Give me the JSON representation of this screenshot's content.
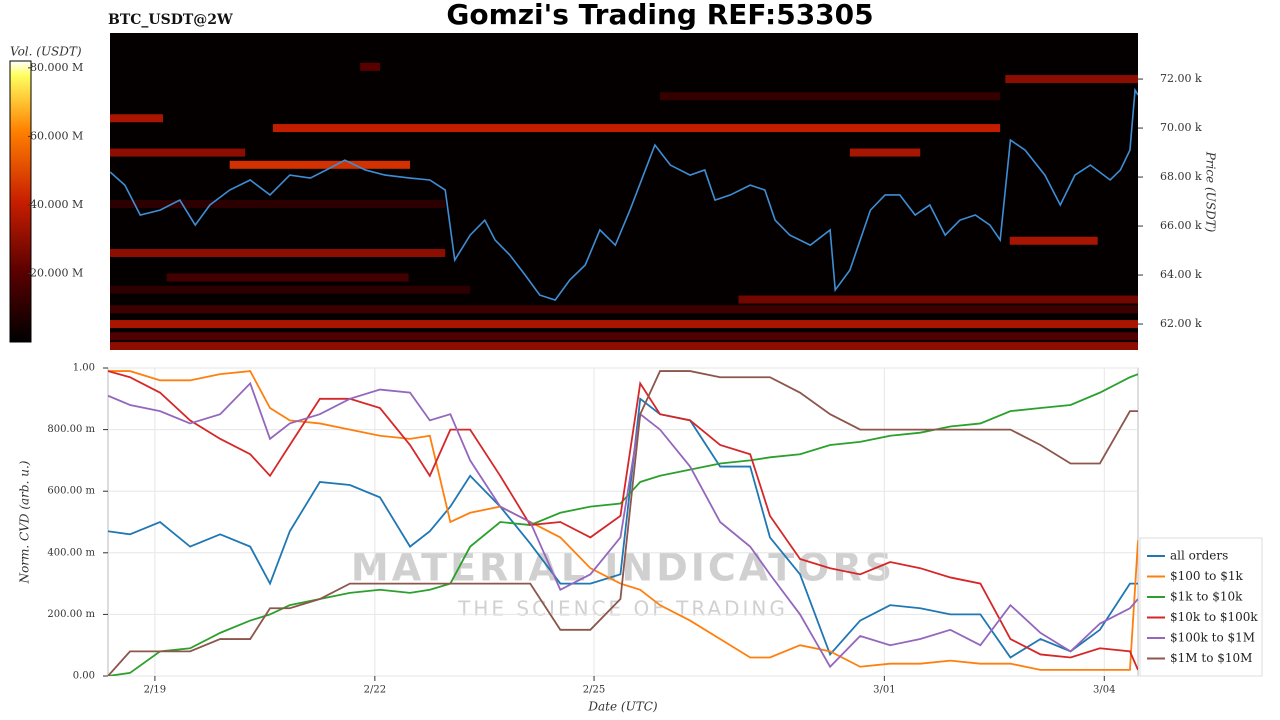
{
  "title": "Gomzi's Trading REF:53305",
  "watermark": {
    "brand": "MATERIAL INDICATORS",
    "tagline": "THE SCIENCE OF TRADING"
  },
  "chart_data": [
    {
      "type": "heatmap",
      "label": "BTC_USDT@2W",
      "ylabel": "Price (USDT)",
      "xlim": [
        0,
        14.05
      ],
      "ylim": [
        60940,
        73880
      ],
      "yticks": [
        {
          "value": 62000,
          "label": "62.00 k"
        },
        {
          "value": 64000,
          "label": "64.00 k"
        },
        {
          "value": 66000,
          "label": "66.00 k"
        },
        {
          "value": 68000,
          "label": "68.00 k"
        },
        {
          "value": 70000,
          "label": "70.00 k"
        },
        {
          "value": 72000,
          "label": "72.00 k"
        }
      ],
      "x": [
        0.03,
        0.23,
        0.44,
        0.71,
        0.98,
        1.19,
        1.39,
        1.66,
        1.94,
        2.21,
        2.48,
        2.76,
        3.03,
        3.23,
        3.51,
        3.78,
        4.12,
        4.39,
        4.6,
        4.73,
        4.94,
        5.14,
        5.28,
        5.48,
        5.69,
        5.89,
        6.1,
        6.3,
        6.51,
        6.71,
        6.92,
        7.12,
        7.33,
        7.46,
        7.67,
        7.94,
        8.14,
        8.28,
        8.49,
        8.76,
        8.96,
        9.1,
        9.3,
        9.58,
        9.85,
        9.92,
        10.12,
        10.4,
        10.6,
        10.8,
        11.01,
        11.21,
        11.42,
        11.62,
        11.83,
        12.03,
        12.17,
        12.31,
        12.51,
        12.78,
        12.99,
        13.19,
        13.4,
        13.67,
        13.81,
        13.94,
        14.01,
        14.05
      ],
      "series": [
        {
          "color": "#3d8ed6",
          "values": [
            68200,
            67670,
            66450,
            66650,
            67060,
            66040,
            66860,
            67470,
            67880,
            67270,
            68080,
            67960,
            68370,
            68690,
            68290,
            68080,
            67960,
            67880,
            67470,
            64610,
            65630,
            66240,
            65430,
            64820,
            64000,
            63180,
            62980,
            63800,
            64410,
            65840,
            65220,
            66650,
            68290,
            69310,
            68490,
            68080,
            68290,
            67060,
            67270,
            67670,
            67470,
            66240,
            65630,
            65220,
            65840,
            63390,
            64200,
            66650,
            67270,
            67270,
            66450,
            66860,
            65630,
            66240,
            66450,
            66040,
            65430,
            69510,
            69100,
            68080,
            66860,
            68080,
            68490,
            67880,
            68290,
            69100,
            71550,
            71350
          ]
        }
      ],
      "bands": [
        {
          "price": 61100,
          "x0": 0,
          "x1": 14.05,
          "volume": 30000000
        },
        {
          "price": 61500,
          "x0": 0,
          "x1": 14.05,
          "volume": 18000000
        },
        {
          "price": 62000,
          "x0": 0,
          "x1": 14.05,
          "volume": 35000000
        },
        {
          "price": 62600,
          "x0": 0,
          "x1": 14.05,
          "volume": 14000000
        },
        {
          "price": 63000,
          "x0": 8.6,
          "x1": 14.05,
          "volume": 25000000
        },
        {
          "price": 63400,
          "x0": 0,
          "x1": 4.94,
          "volume": 10000000
        },
        {
          "price": 63900,
          "x0": 0.8,
          "x1": 4.1,
          "volume": 15000000
        },
        {
          "price": 64900,
          "x0": 0,
          "x1": 4.6,
          "volume": 30000000
        },
        {
          "price": 65400,
          "x0": 12.3,
          "x1": 13.5,
          "volume": 35000000
        },
        {
          "price": 66900,
          "x0": 0,
          "x1": 4.6,
          "volume": 10000000
        },
        {
          "price": 68500,
          "x0": 1.66,
          "x1": 4.12,
          "volume": 45000000
        },
        {
          "price": 69000,
          "x0": 0,
          "x1": 1.87,
          "volume": 30000000
        },
        {
          "price": 69000,
          "x0": 10.12,
          "x1": 11.08,
          "volume": 35000000
        },
        {
          "price": 70000,
          "x0": 2.25,
          "x1": 12.17,
          "volume": 40000000
        },
        {
          "price": 70400,
          "x0": 0,
          "x1": 0.75,
          "volume": 35000000
        },
        {
          "price": 71300,
          "x0": 7.53,
          "x1": 12.17,
          "volume": 12000000
        },
        {
          "price": 72000,
          "x0": 12.24,
          "x1": 14.05,
          "volume": 30000000
        },
        {
          "price": 72500,
          "x0": 3.44,
          "x1": 3.71,
          "volume": 20000000
        }
      ],
      "colorbar": {
        "label": "Vol. (USDT)",
        "lim": [
          0,
          82000000
        ],
        "ticks": [
          {
            "value": 20000000,
            "label": "20.000 M"
          },
          {
            "value": 40000000,
            "label": "40.000 M"
          },
          {
            "value": 60000000,
            "label": "60.000 M"
          },
          {
            "value": 80000000,
            "label": "80.000 M"
          }
        ]
      }
    },
    {
      "type": "line",
      "xlabel": "Date (UTC)",
      "ylabel": "Norm. CVD (arb. u.)",
      "grid": true,
      "legend": "lower right",
      "xlim": [
        0,
        14.05
      ],
      "ylim": [
        0,
        1
      ],
      "xticks": [
        {
          "value": 0.64,
          "label": "2/19"
        },
        {
          "value": 3.64,
          "label": "2/22"
        },
        {
          "value": 6.63,
          "label": "2/25"
        },
        {
          "value": 10.59,
          "label": "3/01"
        },
        {
          "value": 13.59,
          "label": "3/04"
        }
      ],
      "yticks": [
        {
          "value": 0,
          "label": "0.00"
        },
        {
          "value": 0.2,
          "label": "200.00 m"
        },
        {
          "value": 0.4,
          "label": "400.00 m"
        },
        {
          "value": 0.6,
          "label": "600.00 m"
        },
        {
          "value": 0.8,
          "label": "800.00 m"
        },
        {
          "value": 1,
          "label": "1.00"
        }
      ],
      "x": [
        0,
        0.3,
        0.71,
        1.12,
        1.53,
        1.94,
        2.21,
        2.48,
        2.89,
        3.3,
        3.71,
        4.12,
        4.39,
        4.67,
        4.94,
        5.35,
        5.76,
        6.17,
        6.58,
        6.99,
        7.26,
        7.53,
        7.94,
        8.35,
        8.76,
        9.03,
        9.44,
        9.85,
        10.26,
        10.67,
        11.08,
        11.49,
        11.9,
        12.31,
        12.72,
        13.13,
        13.53,
        13.94,
        14.05
      ],
      "series": [
        {
          "name": "all orders",
          "color": "#1f77b4",
          "values": [
            0.47,
            0.46,
            0.5,
            0.42,
            0.46,
            0.42,
            0.3,
            0.47,
            0.63,
            0.62,
            0.58,
            0.42,
            0.47,
            0.55,
            0.65,
            0.55,
            0.43,
            0.3,
            0.3,
            0.33,
            0.9,
            0.85,
            0.83,
            0.68,
            0.68,
            0.45,
            0.33,
            0.07,
            0.18,
            0.23,
            0.22,
            0.2,
            0.2,
            0.06,
            0.12,
            0.08,
            0.15,
            0.3,
            0.3
          ]
        },
        {
          "name": "$100 to $1k",
          "color": "#ff7f0e",
          "values": [
            0.99,
            0.99,
            0.96,
            0.96,
            0.98,
            0.99,
            0.87,
            0.83,
            0.82,
            0.8,
            0.78,
            0.77,
            0.78,
            0.5,
            0.53,
            0.55,
            0.5,
            0.45,
            0.35,
            0.3,
            0.28,
            0.23,
            0.18,
            0.12,
            0.06,
            0.06,
            0.1,
            0.08,
            0.03,
            0.04,
            0.04,
            0.05,
            0.04,
            0.04,
            0.02,
            0.02,
            0.02,
            0.02,
            0.44
          ]
        },
        {
          "name": "$1k to $10k",
          "color": "#2ca02c",
          "values": [
            0.0,
            0.01,
            0.08,
            0.09,
            0.14,
            0.18,
            0.2,
            0.23,
            0.25,
            0.27,
            0.28,
            0.27,
            0.28,
            0.3,
            0.42,
            0.5,
            0.49,
            0.53,
            0.55,
            0.56,
            0.63,
            0.65,
            0.67,
            0.69,
            0.7,
            0.71,
            0.72,
            0.75,
            0.76,
            0.78,
            0.79,
            0.81,
            0.82,
            0.86,
            0.87,
            0.88,
            0.92,
            0.97,
            0.98
          ]
        },
        {
          "name": "$10k to $100k",
          "color": "#d62728",
          "values": [
            0.99,
            0.97,
            0.92,
            0.83,
            0.77,
            0.72,
            0.65,
            0.75,
            0.9,
            0.9,
            0.87,
            0.75,
            0.65,
            0.8,
            0.8,
            0.65,
            0.49,
            0.5,
            0.45,
            0.52,
            0.95,
            0.85,
            0.83,
            0.75,
            0.72,
            0.52,
            0.38,
            0.35,
            0.33,
            0.37,
            0.35,
            0.32,
            0.3,
            0.12,
            0.07,
            0.06,
            0.09,
            0.08,
            0.02
          ]
        },
        {
          "name": "$100k to $1M",
          "color": "#9467bd",
          "values": [
            0.91,
            0.88,
            0.86,
            0.82,
            0.85,
            0.95,
            0.77,
            0.82,
            0.85,
            0.9,
            0.93,
            0.92,
            0.83,
            0.85,
            0.7,
            0.55,
            0.5,
            0.28,
            0.33,
            0.45,
            0.85,
            0.8,
            0.68,
            0.5,
            0.42,
            0.33,
            0.2,
            0.03,
            0.13,
            0.1,
            0.12,
            0.15,
            0.1,
            0.23,
            0.14,
            0.08,
            0.17,
            0.22,
            0.25
          ]
        },
        {
          "name": "$1M to $10M",
          "color": "#8c564b",
          "values": [
            0.0,
            0.08,
            0.08,
            0.08,
            0.12,
            0.12,
            0.22,
            0.22,
            0.25,
            0.3,
            0.3,
            0.3,
            0.3,
            0.3,
            0.3,
            0.3,
            0.3,
            0.15,
            0.15,
            0.25,
            0.85,
            0.99,
            0.99,
            0.97,
            0.97,
            0.97,
            0.92,
            0.85,
            0.8,
            0.8,
            0.8,
            0.8,
            0.8,
            0.8,
            0.75,
            0.69,
            0.69,
            0.86,
            0.86
          ]
        }
      ]
    }
  ]
}
